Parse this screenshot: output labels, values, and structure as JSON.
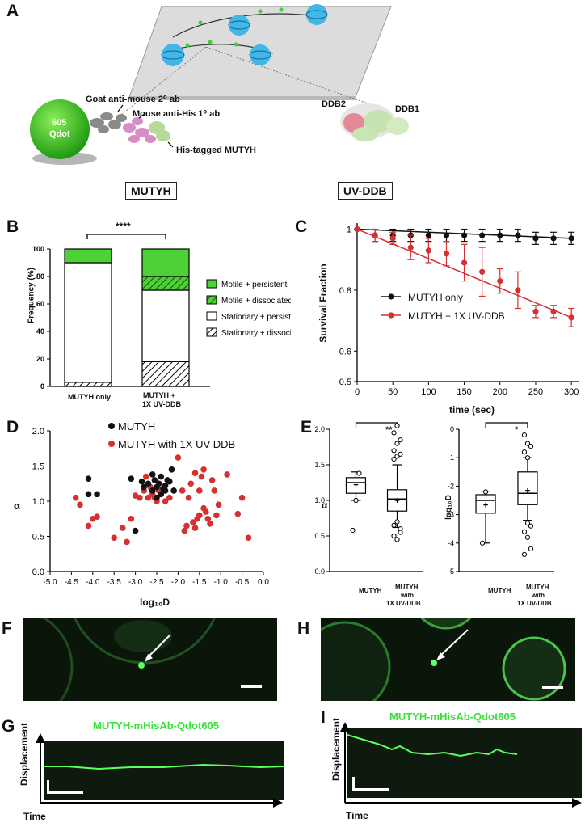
{
  "panels": {
    "A": "A",
    "B": "B",
    "C": "C",
    "D": "D",
    "E": "E",
    "F": "F",
    "G": "G",
    "H": "H",
    "I": "I"
  },
  "panelA": {
    "qdot_label_1": "605",
    "qdot_label_2": "Qdot",
    "goat_ab": "Goat anti-mouse 2⁰ ab",
    "mouse_ab": "Mouse anti-His 1⁰ ab",
    "his_tagged": "His-tagged MUTYH",
    "ddb2": "DDB2",
    "ddb1": "DDB1",
    "box_mutyh": "MUTYH",
    "box_uvddb": "UV-DDB"
  },
  "panelB": {
    "ylabel": "Frequency (%)",
    "significance": "****",
    "yticks": [
      "0",
      "20",
      "40",
      "60",
      "80",
      "100"
    ],
    "categories": [
      "MUTYH only",
      "MUTYH +",
      "1X UV-DDB"
    ],
    "legend": [
      "Motile + persistent",
      "Motile + dissociated",
      "Stationary + persistent",
      "Stationary + dissociated"
    ],
    "colors": {
      "motile_persistent": "#4cd137",
      "motile_dissociated": "#4cd137",
      "stationary": "#ffffff"
    }
  },
  "panelC": {
    "ylabel": "Survival Fraction",
    "xlabel": "time (sec)",
    "yticks": [
      "0.5",
      "0.6",
      "0.8",
      "1"
    ],
    "xticks": [
      "0",
      "50",
      "100",
      "150",
      "200",
      "250",
      "300"
    ],
    "legend_black": "MUTYH only",
    "legend_red": "MUTYH + 1X UV-DDB",
    "colors": {
      "black": "#111111",
      "red": "#d63031"
    }
  },
  "panelD": {
    "ylabel": "α",
    "xlabel": "log₁₀D",
    "legend_black": "MUTYH",
    "legend_red": "MUTYH with 1X UV-DDB",
    "yticks": [
      "0.0",
      "0.5",
      "1.0",
      "1.5",
      "2.0"
    ],
    "xticks": [
      "-5.0",
      "-4.5",
      "-4.0",
      "-3.5",
      "-3.0",
      "-2.5",
      "-2.0",
      "-1.5",
      "-1.0",
      "-0.5",
      "0.0"
    ]
  },
  "panelE": {
    "left_ylabel": "α",
    "left_sig": "**",
    "left_yticks": [
      "0.0",
      "0.5",
      "1.0",
      "1.5",
      "2.0"
    ],
    "right_ylabel": "log₁₀D",
    "right_sig": "*",
    "right_yticks": [
      "-5",
      "-4",
      "-3",
      "-2",
      "-1",
      "0"
    ],
    "cat1": "MUTYH",
    "cat2_1": "MUTYH",
    "cat2_2": "with",
    "cat2_3": "1X UV-DDB"
  },
  "panelG": {
    "title": "MUTYH-mHisAb-Qdot605",
    "ylabel": "Displacement",
    "xlabel": "Time"
  },
  "panelI": {
    "title": "MUTYH-mHisAb-Qdot605",
    "ylabel": "Displacement",
    "xlabel": "Time"
  },
  "chart_data": [
    {
      "type": "bar",
      "title": "",
      "ylabel": "Frequency (%)",
      "ylim": [
        0,
        100
      ],
      "categories": [
        "MUTYH only",
        "MUTYH + 1X UV-DDB"
      ],
      "series": [
        {
          "name": "Stationary + dissociated",
          "values": [
            3,
            18
          ]
        },
        {
          "name": "Stationary + persistent",
          "values": [
            87,
            52
          ]
        },
        {
          "name": "Motile + dissociated",
          "values": [
            0,
            10
          ]
        },
        {
          "name": "Motile + persistent",
          "values": [
            10,
            20
          ]
        }
      ]
    },
    {
      "type": "line",
      "ylabel": "Survival Fraction",
      "xlabel": "time (sec)",
      "xlim": [
        0,
        310
      ],
      "ylim": [
        0.5,
        1.02
      ],
      "x": [
        0,
        25,
        50,
        75,
        100,
        125,
        150,
        175,
        200,
        225,
        250,
        275,
        300
      ],
      "series": [
        {
          "name": "MUTYH only",
          "values": [
            1.0,
            0.98,
            0.98,
            0.98,
            0.98,
            0.98,
            0.98,
            0.98,
            0.98,
            0.98,
            0.97,
            0.97,
            0.97
          ],
          "err": [
            0.0,
            0.02,
            0.02,
            0.02,
            0.02,
            0.02,
            0.02,
            0.02,
            0.02,
            0.02,
            0.02,
            0.02,
            0.02
          ]
        },
        {
          "name": "MUTYH + 1X UV-DDB",
          "values": [
            1.0,
            0.98,
            0.97,
            0.94,
            0.93,
            0.92,
            0.89,
            0.86,
            0.83,
            0.8,
            0.73,
            0.73,
            0.71
          ],
          "err": [
            0.0,
            0.02,
            0.02,
            0.04,
            0.04,
            0.04,
            0.06,
            0.08,
            0.04,
            0.06,
            0.02,
            0.02,
            0.03
          ]
        }
      ]
    },
    {
      "type": "scatter",
      "xlabel": "log₁₀D",
      "ylabel": "α",
      "xlim": [
        -5.0,
        0.0
      ],
      "ylim": [
        0.0,
        2.0
      ],
      "series": [
        {
          "name": "MUTYH",
          "points": [
            [
              -4.1,
              1.32
            ],
            [
              -4.1,
              1.1
            ],
            [
              -3.9,
              1.1
            ],
            [
              -3.1,
              1.32
            ],
            [
              -3.0,
              0.58
            ],
            [
              -2.85,
              1.28
            ],
            [
              -2.8,
              1.2
            ],
            [
              -2.7,
              1.25
            ],
            [
              -2.6,
              1.15
            ],
            [
              -2.55,
              1.3
            ],
            [
              -2.5,
              1.2
            ],
            [
              -2.45,
              1.25
            ],
            [
              -2.4,
              1.35
            ],
            [
              -2.35,
              1.18
            ],
            [
              -2.3,
              1.22
            ],
            [
              -2.25,
              1.3
            ],
            [
              -2.2,
              1.28
            ],
            [
              -2.15,
              1.45
            ],
            [
              -2.1,
              1.15
            ],
            [
              -2.6,
              1.38
            ],
            [
              -2.5,
              1.05
            ],
            [
              -2.4,
              1.1
            ],
            [
              -2.3,
              1.15
            ]
          ]
        },
        {
          "name": "MUTYH with 1X UV-DDB",
          "points": [
            [
              -4.4,
              1.05
            ],
            [
              -4.3,
              0.95
            ],
            [
              -4.1,
              0.65
            ],
            [
              -4.0,
              0.75
            ],
            [
              -3.9,
              0.78
            ],
            [
              -3.5,
              0.48
            ],
            [
              -3.3,
              0.62
            ],
            [
              -3.2,
              0.42
            ],
            [
              -3.1,
              0.75
            ],
            [
              -3.0,
              1.08
            ],
            [
              -2.9,
              1.05
            ],
            [
              -2.8,
              1.15
            ],
            [
              -2.75,
              1.35
            ],
            [
              -2.7,
              1.05
            ],
            [
              -2.65,
              1.2
            ],
            [
              -2.6,
              1.1
            ],
            [
              -2.55,
              1.05
            ],
            [
              -2.5,
              1.0
            ],
            [
              -2.45,
              1.15
            ],
            [
              -2.4,
              1.1
            ],
            [
              -2.3,
              1.0
            ],
            [
              -2.2,
              1.05
            ],
            [
              -2.0,
              1.62
            ],
            [
              -1.9,
              1.15
            ],
            [
              -1.85,
              0.58
            ],
            [
              -1.8,
              0.65
            ],
            [
              -1.75,
              1.05
            ],
            [
              -1.7,
              1.25
            ],
            [
              -1.65,
              0.7
            ],
            [
              -1.6,
              0.62
            ],
            [
              -1.55,
              0.75
            ],
            [
              -1.5,
              0.8
            ],
            [
              -1.45,
              1.35
            ],
            [
              -1.4,
              0.9
            ],
            [
              -1.35,
              0.85
            ],
            [
              -1.3,
              0.75
            ],
            [
              -1.25,
              0.68
            ],
            [
              -1.2,
              1.3
            ],
            [
              -1.15,
              1.15
            ],
            [
              -1.1,
              0.8
            ],
            [
              -1.05,
              0.95
            ],
            [
              -0.85,
              1.38
            ],
            [
              -0.6,
              0.82
            ],
            [
              -0.5,
              1.05
            ],
            [
              -0.35,
              0.48
            ],
            [
              -1.4,
              1.45
            ],
            [
              -1.5,
              1.15
            ],
            [
              -1.6,
              1.4
            ]
          ]
        }
      ]
    },
    {
      "type": "box",
      "ylabel": "α",
      "categories": [
        "MUTYH",
        "MUTYH with 1X UV-DDB"
      ],
      "ylim": [
        0.0,
        2.0
      ],
      "boxes": [
        {
          "min": 1.0,
          "q1": 1.1,
          "median": 1.25,
          "q3": 1.32,
          "max": 1.4,
          "mean": 1.22,
          "outliers": [
            0.58,
            1.0,
            1.38
          ]
        },
        {
          "min": 0.62,
          "q1": 0.85,
          "median": 1.02,
          "q3": 1.15,
          "max": 1.5,
          "mean": 1.0,
          "outliers": [
            1.58,
            1.62,
            1.65,
            1.7,
            1.8,
            1.85,
            1.95,
            2.05,
            0.6,
            0.5,
            0.45,
            0.55,
            0.65,
            0.7
          ]
        }
      ]
    },
    {
      "type": "box",
      "ylabel": "log₁₀D",
      "categories": [
        "MUTYH",
        "MUTYH with 1X UV-DDB"
      ],
      "ylim": [
        -5,
        0
      ],
      "boxes": [
        {
          "min": -4.0,
          "q1": -2.95,
          "median": -2.5,
          "q3": -2.3,
          "max": -2.2,
          "mean": -2.65,
          "outliers": [
            -4.0,
            -2.2
          ]
        },
        {
          "min": -3.2,
          "q1": -2.65,
          "median": -2.25,
          "q3": -1.5,
          "max": -1.0,
          "mean": -2.15,
          "outliers": [
            -0.2,
            -0.5,
            -0.6,
            -0.8,
            -1.0,
            -3.4,
            -3.6,
            -3.8,
            -4.2,
            -4.4,
            -3.3
          ]
        }
      ]
    }
  ]
}
